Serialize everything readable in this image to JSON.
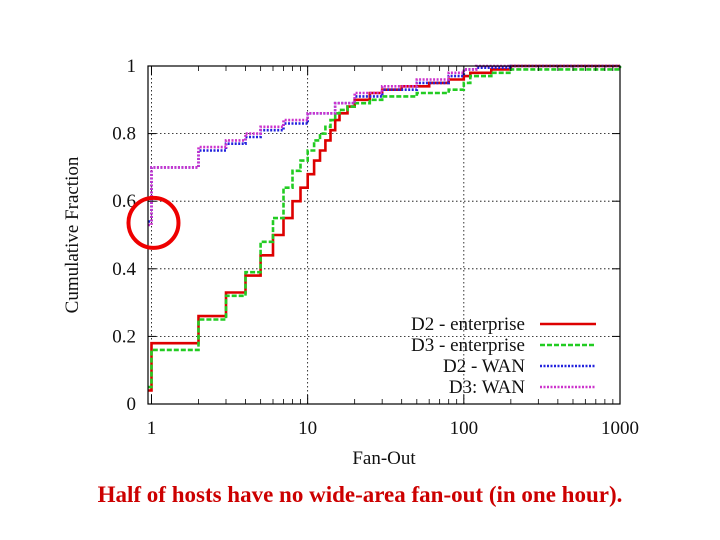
{
  "caption": "Half of hosts have no wide-area fan-out (in one hour).",
  "chart_data": {
    "type": "line",
    "step": true,
    "xscale": "log",
    "xlim": [
      0.95,
      1000
    ],
    "ylim": [
      0,
      1
    ],
    "xlabel": "Fan-Out",
    "ylabel": "Cumulative Fraction",
    "xticks": [
      {
        "v": 1,
        "label": "1"
      },
      {
        "v": 10,
        "label": "10"
      },
      {
        "v": 100,
        "label": "100"
      },
      {
        "v": 1000,
        "label": "1000"
      }
    ],
    "yticks": [
      {
        "v": 0,
        "label": "0"
      },
      {
        "v": 0.2,
        "label": "0.2"
      },
      {
        "v": 0.4,
        "label": "0.4"
      },
      {
        "v": 0.6,
        "label": "0.6"
      },
      {
        "v": 0.8,
        "label": "0.8"
      },
      {
        "v": 1,
        "label": "1"
      }
    ],
    "grid": true,
    "legend_position": "bottom-right",
    "series": [
      {
        "name": "D2 - enterprise",
        "color": "#dd0000",
        "dash": "solid",
        "x": [
          0.95,
          1,
          2,
          3,
          4,
          5,
          6,
          7,
          8,
          9,
          10,
          11,
          12,
          13,
          14,
          15,
          16,
          18,
          20,
          25,
          30,
          40,
          60,
          80,
          100,
          110,
          150,
          200,
          1000
        ],
        "y": [
          0.04,
          0.18,
          0.26,
          0.33,
          0.38,
          0.44,
          0.5,
          0.55,
          0.6,
          0.64,
          0.68,
          0.72,
          0.75,
          0.78,
          0.81,
          0.84,
          0.86,
          0.88,
          0.9,
          0.92,
          0.93,
          0.94,
          0.95,
          0.96,
          0.97,
          0.98,
          0.99,
          1.0,
          1.0
        ]
      },
      {
        "name": "D3 - enterprise",
        "color": "#22cc22",
        "dash": "dashed",
        "x": [
          0.95,
          1,
          2,
          3,
          4,
          5,
          6,
          7,
          8,
          9,
          10,
          11,
          12,
          13,
          14,
          15,
          16,
          18,
          20,
          25,
          30,
          50,
          80,
          100,
          110,
          150,
          200,
          1000
        ],
        "y": [
          0.05,
          0.16,
          0.25,
          0.32,
          0.39,
          0.48,
          0.55,
          0.64,
          0.69,
          0.72,
          0.75,
          0.78,
          0.8,
          0.82,
          0.84,
          0.86,
          0.87,
          0.88,
          0.89,
          0.9,
          0.91,
          0.92,
          0.93,
          0.95,
          0.97,
          0.98,
          0.99,
          1.0
        ]
      },
      {
        "name": "D2 - WAN",
        "color": "#2222dd",
        "dash": "dotted",
        "x": [
          0.95,
          1,
          2,
          3,
          4,
          5,
          7,
          10,
          15,
          20,
          30,
          50,
          80,
          100,
          120,
          200,
          1000
        ],
        "y": [
          0.54,
          0.7,
          0.75,
          0.77,
          0.79,
          0.81,
          0.83,
          0.86,
          0.89,
          0.91,
          0.93,
          0.95,
          0.97,
          0.99,
          0.995,
          1.0,
          1.0
        ]
      },
      {
        "name": "D3: WAN",
        "color": "#cc33cc",
        "dash": "dotted",
        "x": [
          0.95,
          1,
          2,
          3,
          4,
          5,
          7,
          10,
          15,
          20,
          30,
          50,
          80,
          100,
          120,
          200,
          1000
        ],
        "y": [
          0.53,
          0.7,
          0.76,
          0.78,
          0.8,
          0.82,
          0.84,
          0.86,
          0.89,
          0.92,
          0.94,
          0.96,
          0.98,
          0.99,
          1.0,
          1.0,
          1.0
        ]
      }
    ],
    "annotations": [
      {
        "type": "circle",
        "x": 1.0,
        "y": 0.53,
        "color": "#ee0000",
        "label": ""
      }
    ]
  }
}
